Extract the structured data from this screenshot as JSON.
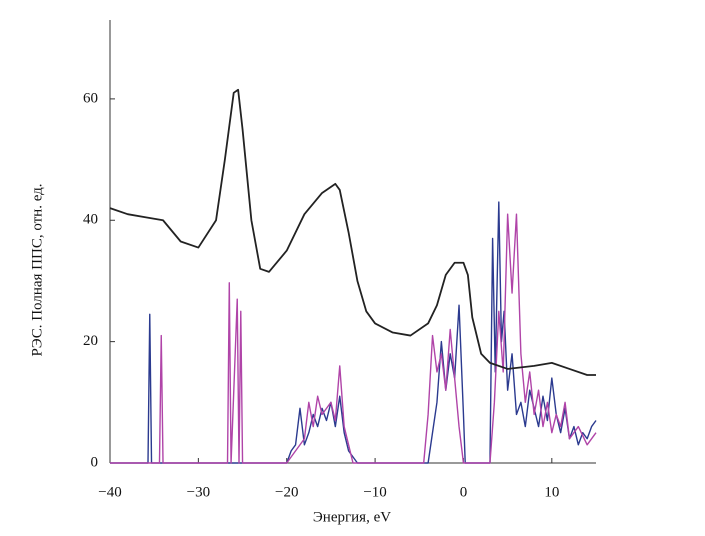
{
  "chart_data": {
    "type": "line",
    "xlabel": "Энергия, eV",
    "ylabel": "РЭС. Полная ППС, отн. ед.",
    "xlim": [
      -40,
      15
    ],
    "ylim": [
      0,
      73
    ],
    "xticks": [
      {
        "value": -40,
        "label": "−40"
      },
      {
        "value": -30,
        "label": "−30"
      },
      {
        "value": -20,
        "label": "−20"
      },
      {
        "value": -10,
        "label": "−10"
      },
      0,
      10
    ],
    "yticks": [
      0,
      20,
      40,
      60
    ],
    "series": [
      {
        "color": "#2b3a8f",
        "x": [
          -40,
          -35.7,
          -35.5,
          -35.3,
          -20,
          -19.5,
          -19,
          -18.5,
          -18,
          -17.5,
          -17,
          -16.5,
          -16,
          -15.5,
          -15,
          -14.5,
          -14,
          -13.5,
          -13,
          -12,
          -4,
          -3.5,
          -3,
          -2.5,
          -2,
          -1.5,
          -1,
          -0.5,
          0,
          0.2,
          3,
          3.3,
          3.6,
          4,
          4.3,
          4.6,
          5,
          5.5,
          6,
          6.5,
          7,
          7.5,
          8,
          8.5,
          9,
          9.5,
          10,
          10.5,
          11,
          11.5,
          12,
          12.5,
          13,
          13.5,
          14,
          14.5,
          15
        ],
        "values": [
          0,
          0,
          24.5,
          0,
          0,
          2,
          3,
          9,
          3,
          5,
          8,
          6,
          9,
          7,
          10,
          6,
          11,
          5,
          2,
          0,
          0,
          5,
          10,
          20,
          12,
          18,
          14,
          26,
          8,
          0,
          0,
          37,
          15,
          43,
          20,
          25,
          12,
          18,
          8,
          10,
          6,
          12,
          9,
          6,
          11,
          7,
          14,
          8,
          5,
          9,
          4,
          6,
          3,
          5,
          4,
          6,
          7
        ]
      },
      {
        "color": "#b044a8",
        "x": [
          -40,
          -34.4,
          -34.2,
          -34,
          -26.7,
          -26.5,
          -26.3,
          -25.6,
          -25.4,
          -25.2,
          -25,
          -20,
          -19,
          -18,
          -17.5,
          -17,
          -16.5,
          -16,
          -15.5,
          -15,
          -14.5,
          -14,
          -13.5,
          -13,
          -12.5,
          -4.5,
          -4,
          -3.5,
          -3,
          -2.5,
          -2,
          -1.5,
          -1,
          -0.5,
          0,
          3,
          3.5,
          4,
          4.5,
          5,
          5.5,
          6,
          6.5,
          7,
          7.5,
          8,
          8.5,
          9,
          9.5,
          10,
          10.5,
          11,
          11.5,
          12,
          13,
          14,
          15
        ],
        "values": [
          0,
          0,
          21,
          0,
          0,
          29.7,
          0,
          27,
          0,
          25,
          0,
          0,
          2,
          4,
          10,
          6,
          11,
          8,
          9,
          10,
          7,
          16,
          6,
          3,
          0,
          0,
          8,
          21,
          15,
          18,
          12,
          22,
          14,
          6,
          0,
          0,
          10,
          25,
          15,
          41,
          28,
          41,
          18,
          10,
          15,
          8,
          12,
          6,
          10,
          5,
          8,
          6,
          10,
          4,
          6,
          3,
          5
        ]
      },
      {
        "color": "#222222",
        "x": [
          -40,
          -38,
          -36,
          -34,
          -32,
          -30,
          -28,
          -27,
          -26,
          -25.5,
          -25,
          -24,
          -23,
          -22,
          -20,
          -18,
          -16,
          -14.5,
          -14,
          -13,
          -12,
          -11,
          -10,
          -8,
          -6,
          -4,
          -3,
          -2,
          -1,
          0,
          0.5,
          1,
          2,
          3,
          5,
          8,
          10,
          12,
          14,
          15
        ],
        "values": [
          42,
          41,
          40.5,
          40,
          36.5,
          35.5,
          40,
          50,
          61,
          61.5,
          55,
          40,
          32,
          31.5,
          35,
          41,
          44.5,
          46,
          45,
          38,
          30,
          25,
          23,
          21.5,
          21,
          23,
          26,
          31,
          33,
          33,
          31,
          24,
          18,
          16.5,
          15.5,
          16,
          16.5,
          15.5,
          14.5,
          14.5
        ]
      }
    ]
  }
}
